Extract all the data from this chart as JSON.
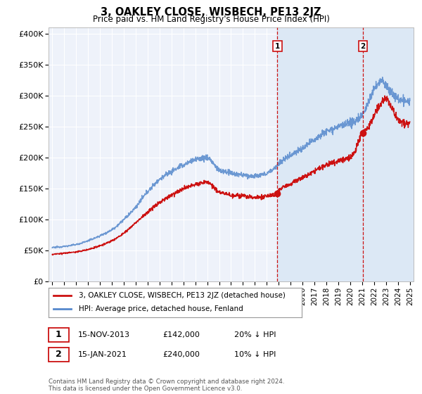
{
  "title": "3, OAKLEY CLOSE, WISBECH, PE13 2JZ",
  "subtitle": "Price paid vs. HM Land Registry's House Price Index (HPI)",
  "ylabel_ticks": [
    "£0",
    "£50K",
    "£100K",
    "£150K",
    "£200K",
    "£250K",
    "£300K",
    "£350K",
    "£400K"
  ],
  "ytick_vals": [
    0,
    50000,
    100000,
    150000,
    200000,
    250000,
    300000,
    350000,
    400000
  ],
  "ylim": [
    0,
    410000
  ],
  "xlim_start": 1994.7,
  "xlim_end": 2025.3,
  "xticks": [
    1995,
    1996,
    1997,
    1998,
    1999,
    2000,
    2001,
    2002,
    2003,
    2004,
    2005,
    2006,
    2007,
    2008,
    2009,
    2010,
    2011,
    2012,
    2013,
    2014,
    2015,
    2016,
    2017,
    2018,
    2019,
    2020,
    2021,
    2022,
    2023,
    2024,
    2025
  ],
  "hpi_color": "#5588cc",
  "price_color": "#cc1111",
  "sale1_x": 2013.88,
  "sale1_y": 142000,
  "sale2_x": 2021.04,
  "sale2_y": 240000,
  "vline_color": "#cc1111",
  "shade_color": "#dce8f5",
  "legend_label1": "3, OAKLEY CLOSE, WISBECH, PE13 2JZ (detached house)",
  "legend_label2": "HPI: Average price, detached house, Fenland",
  "annotation1_date": "15-NOV-2013",
  "annotation1_price": "£142,000",
  "annotation1_hpi": "20% ↓ HPI",
  "annotation2_date": "15-JAN-2021",
  "annotation2_price": "£240,000",
  "annotation2_hpi": "10% ↓ HPI",
  "footnote": "Contains HM Land Registry data © Crown copyright and database right 2024.\nThis data is licensed under the Open Government Licence v3.0.",
  "bg_color": "#ffffff",
  "plot_bg_color": "#eef2fa",
  "grid_color": "#ffffff"
}
